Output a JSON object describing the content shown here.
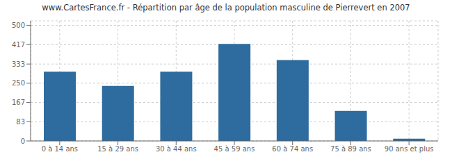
{
  "chart_data": {
    "type": "bar",
    "title": "www.CartesFrance.fr - Répartition par âge de la population masculine de Pierrevert en 2007",
    "categories": [
      "0 à 14 ans",
      "15 à 29 ans",
      "30 à 44 ans",
      "45 à 59 ans",
      "60 à 74 ans",
      "75 à 89 ans",
      "90 ans et plus"
    ],
    "values": [
      300,
      238,
      300,
      420,
      350,
      130,
      10
    ],
    "color": "#2e6b9e",
    "ylim": [
      0,
      520
    ],
    "yticks": [
      0,
      83,
      167,
      250,
      333,
      417,
      500
    ],
    "grid": true
  }
}
